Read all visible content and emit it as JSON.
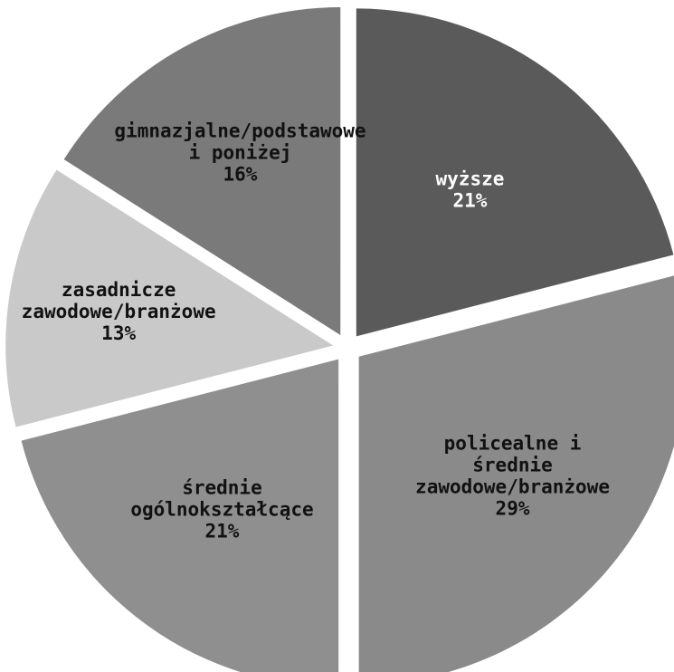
{
  "chart_data": {
    "type": "pie",
    "start_angle_deg": 0,
    "direction": "clockwise",
    "slices": [
      {
        "label_lines": [
          "wyższe"
        ],
        "pct_label": "21%",
        "value": 21,
        "color": "#5a5a5a",
        "text_color": "#ffffff"
      },
      {
        "label_lines": [
          "policealne i",
          "średnie",
          "zawodowe/branżowe"
        ],
        "pct_label": "29%",
        "value": 29,
        "color": "#8a8a8a",
        "text_color": "#111111"
      },
      {
        "label_lines": [
          "średnie",
          "ogólnokształcące"
        ],
        "pct_label": "21%",
        "value": 21,
        "color": "#8f8f8f",
        "text_color": "#111111"
      },
      {
        "label_lines": [
          "zasadnicze",
          "zawodowe/branżowe"
        ],
        "pct_label": "13%",
        "value": 13,
        "color": "#c9c9c9",
        "text_color": "#111111"
      },
      {
        "label_lines": [
          "gimnazjalne/podstawowe",
          "i poniżej"
        ],
        "pct_label": "16%",
        "value": 16,
        "color": "#7a7a7a",
        "text_color": "#111111"
      }
    ]
  }
}
